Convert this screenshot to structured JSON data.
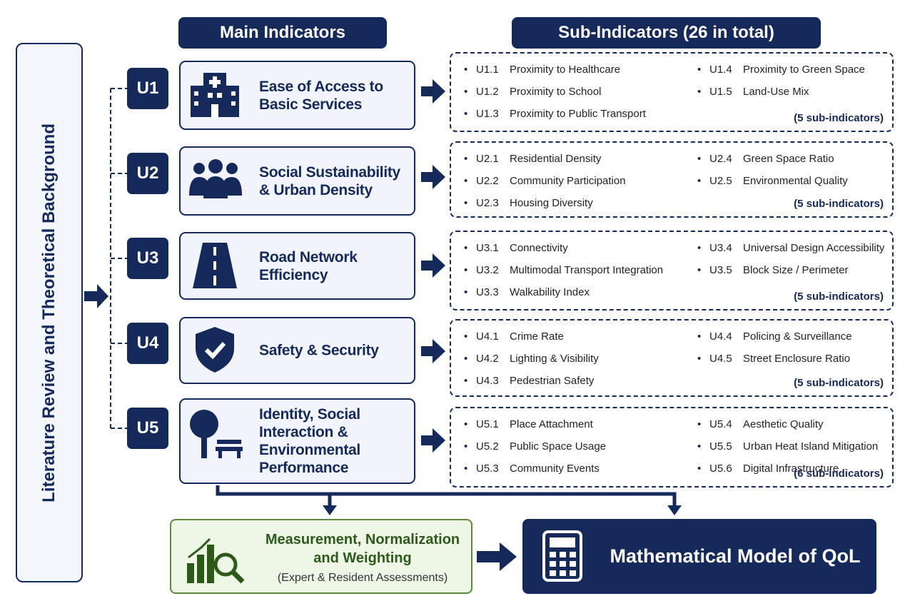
{
  "side_label": "Literature Review and Theoretical Background",
  "headers": {
    "main": "Main Indicators",
    "sub": "Sub-Indicators (26 in total)"
  },
  "indicators": [
    {
      "code": "U1",
      "title_lines": [
        "Ease of Access to",
        "Basic Services"
      ],
      "sub_indicators": [
        {
          "code": "U1.1",
          "label": "Proximity to Healthcare"
        },
        {
          "code": "U1.2",
          "label": "Proximity to School"
        },
        {
          "code": "U1.3",
          "label": "Proximity to Public Transport"
        },
        {
          "code": "U1.4",
          "label": "Proximity to Green Space"
        },
        {
          "code": "U1.5",
          "label": "Land-Use Mix"
        }
      ],
      "count_label": "(5 sub-indicators)"
    },
    {
      "code": "U2",
      "title_lines": [
        "Social Sustainability",
        "& Urban Density"
      ],
      "sub_indicators": [
        {
          "code": "U2.1",
          "label": "Residential Density"
        },
        {
          "code": "U2.2",
          "label": "Community Participation"
        },
        {
          "code": "U2.3",
          "label": "Housing Diversity"
        },
        {
          "code": "U2.4",
          "label": "Green Space Ratio"
        },
        {
          "code": "U2.5",
          "label": "Environmental Quality"
        }
      ],
      "count_label": "(5 sub-indicators)"
    },
    {
      "code": "U3",
      "title_lines": [
        "Road Network",
        "Efficiency"
      ],
      "sub_indicators": [
        {
          "code": "U3.1",
          "label": "Connectivity"
        },
        {
          "code": "U3.2",
          "label": "Multimodal Transport Integration"
        },
        {
          "code": "U3.3",
          "label": "Walkability Index"
        },
        {
          "code": "U3.4",
          "label": "Universal Design Accessibility"
        },
        {
          "code": "U3.5",
          "label": "Block Size / Perimeter"
        }
      ],
      "count_label": "(5 sub-indicators)"
    },
    {
      "code": "U4",
      "title_lines": [
        "Safety & Security"
      ],
      "sub_indicators": [
        {
          "code": "U4.1",
          "label": "Crime Rate"
        },
        {
          "code": "U4.2",
          "label": "Lighting & Visibility"
        },
        {
          "code": "U4.3",
          "label": "Pedestrian Safety"
        },
        {
          "code": "U4.4",
          "label": "Policing & Surveillance"
        },
        {
          "code": "U4.5",
          "label": "Street Enclosure Ratio"
        }
      ],
      "count_label": "(5 sub-indicators)"
    },
    {
      "code": "U5",
      "title_lines": [
        "Identity, Social",
        "Interaction &",
        "Environmental",
        "Performance"
      ],
      "sub_indicators": [
        {
          "code": "U5.1",
          "label": "Place Attachment"
        },
        {
          "code": "U5.2",
          "label": "Public Space Usage"
        },
        {
          "code": "U5.3",
          "label": "Community Events"
        },
        {
          "code": "U5.4",
          "label": "Aesthetic Quality"
        },
        {
          "code": "U5.5",
          "label": "Urban Heat Island Mitigation"
        },
        {
          "code": "U5.6",
          "label": "Digital Infrastructure"
        }
      ],
      "count_label": "(6 sub-indicators)"
    }
  ],
  "measurement": {
    "title_lines": [
      "Measurement, Normalization",
      "and Weighting"
    ],
    "subtitle": "(Expert & Resident Assessments)"
  },
  "model": "Mathematical Model of QoL"
}
